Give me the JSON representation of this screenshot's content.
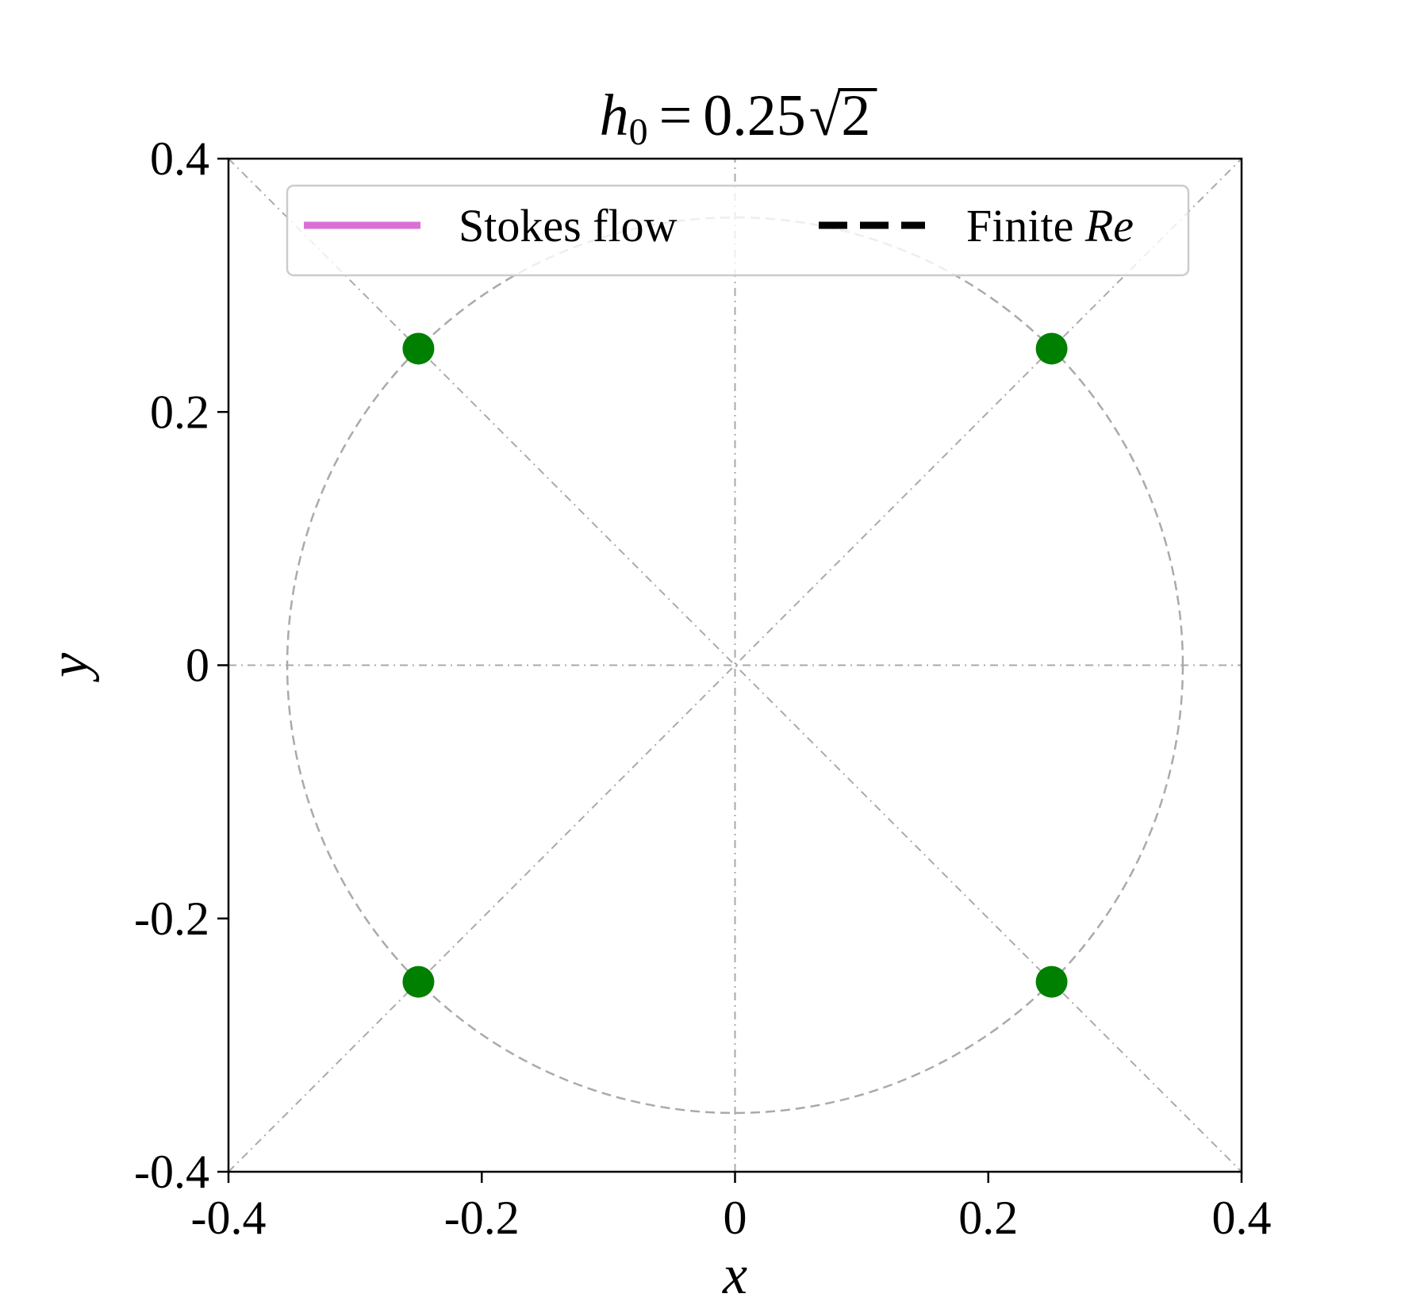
{
  "chart_data": {
    "type": "scatter",
    "title": {
      "symbol": "h",
      "subscript": "0",
      "equals": "=",
      "coefficient": "0.25",
      "radical_sign": "√",
      "radicand": "2"
    },
    "xlabel": "x",
    "ylabel": "y",
    "xlim": [
      -0.4,
      0.4
    ],
    "ylim": [
      -0.4,
      0.4
    ],
    "xticks": [
      -0.4,
      -0.2,
      0,
      0.2,
      0.4
    ],
    "yticks": [
      -0.4,
      -0.2,
      0,
      0.2,
      0.4
    ],
    "xtick_labels": [
      "-0.4",
      "-0.2",
      "0",
      "0.2",
      "0.4"
    ],
    "ytick_labels": [
      "-0.4",
      "-0.2",
      "0",
      "0.2",
      "0.4"
    ],
    "grid": false,
    "legend_position": "top",
    "legend": [
      {
        "label": "Stokes flow",
        "style": "solid",
        "color": "#da70d6"
      },
      {
        "label_prefix": "Finite ",
        "label_italic": "Re",
        "style": "dashed",
        "color": "#000000"
      }
    ],
    "points": {
      "color": "#008000",
      "x": [
        -0.25,
        0.25,
        -0.25,
        0.25
      ],
      "y": [
        0.25,
        0.25,
        -0.25,
        -0.25
      ]
    },
    "reference_circle": {
      "center": [
        0,
        0
      ],
      "radius": 0.3536,
      "color": "#aaaaaa",
      "style": "dashed"
    },
    "reference_lines_color": "#aaaaaa",
    "reference_lines": [
      {
        "from": [
          -0.4,
          0
        ],
        "to": [
          0.4,
          0
        ]
      },
      {
        "from": [
          0,
          -0.4
        ],
        "to": [
          0,
          0.4
        ]
      },
      {
        "from": [
          -0.4,
          -0.4
        ],
        "to": [
          0.4,
          0.4
        ]
      },
      {
        "from": [
          -0.4,
          0.4
        ],
        "to": [
          0.4,
          -0.4
        ]
      }
    ]
  }
}
